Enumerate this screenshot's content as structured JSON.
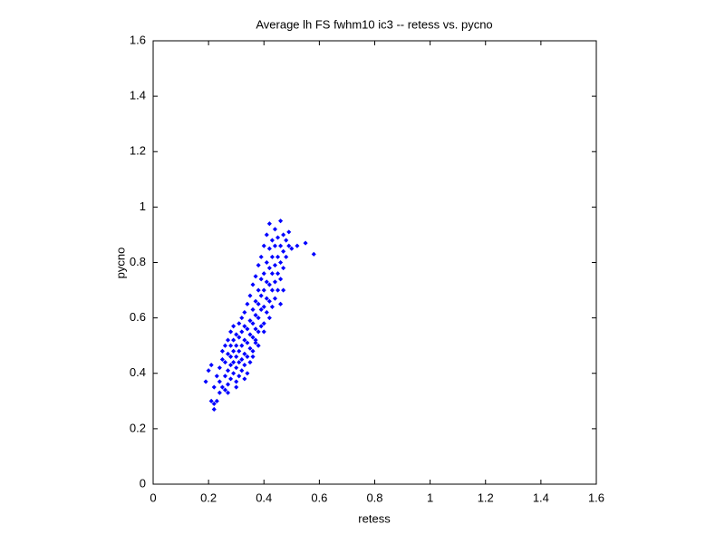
{
  "chart_data": {
    "type": "scatter",
    "title": "Average lh FS fwhm10 ic3 -- retess vs. pycno",
    "x_label": "retess",
    "y_label": "pycno",
    "xlim": [
      0,
      1.6
    ],
    "ylim": [
      0,
      1.6
    ],
    "xticks": [
      0,
      0.2,
      0.4,
      0.6,
      0.8,
      1,
      1.2,
      1.4,
      1.6
    ],
    "yticks": [
      0,
      0.2,
      0.4,
      0.6,
      0.8,
      1,
      1.2,
      1.4,
      1.6
    ],
    "grid": false,
    "series": [
      {
        "color": "#0000ff",
        "x": [
          0.19,
          0.2,
          0.21,
          0.22,
          0.22,
          0.23,
          0.22,
          0.23,
          0.21,
          0.24,
          0.24,
          0.24,
          0.25,
          0.25,
          0.25,
          0.26,
          0.26,
          0.26,
          0.26,
          0.27,
          0.27,
          0.27,
          0.27,
          0.28,
          0.28,
          0.28,
          0.28,
          0.28,
          0.29,
          0.29,
          0.29,
          0.29,
          0.29,
          0.3,
          0.3,
          0.3,
          0.3,
          0.3,
          0.31,
          0.31,
          0.31,
          0.31,
          0.31,
          0.32,
          0.32,
          0.32,
          0.32,
          0.32,
          0.33,
          0.33,
          0.33,
          0.33,
          0.33,
          0.34,
          0.34,
          0.34,
          0.34,
          0.34,
          0.35,
          0.35,
          0.35,
          0.35,
          0.35,
          0.36,
          0.36,
          0.36,
          0.36,
          0.36,
          0.37,
          0.37,
          0.37,
          0.37,
          0.37,
          0.38,
          0.38,
          0.38,
          0.38,
          0.38,
          0.39,
          0.39,
          0.39,
          0.39,
          0.39,
          0.4,
          0.4,
          0.4,
          0.4,
          0.4,
          0.41,
          0.41,
          0.41,
          0.41,
          0.41,
          0.42,
          0.42,
          0.42,
          0.42,
          0.42,
          0.42,
          0.43,
          0.43,
          0.43,
          0.43,
          0.43,
          0.44,
          0.44,
          0.44,
          0.44,
          0.44,
          0.45,
          0.45,
          0.45,
          0.45,
          0.46,
          0.46,
          0.46,
          0.46,
          0.47,
          0.47,
          0.47,
          0.48,
          0.48,
          0.49,
          0.49,
          0.5,
          0.52,
          0.55,
          0.58,
          0.37,
          0.36,
          0.38,
          0.4,
          0.33,
          0.3,
          0.27,
          0.46,
          0.47
        ],
        "values": [
          0.37,
          0.41,
          0.3,
          0.27,
          0.29,
          0.3,
          0.35,
          0.39,
          0.43,
          0.33,
          0.37,
          0.42,
          0.45,
          0.48,
          0.35,
          0.34,
          0.39,
          0.44,
          0.5,
          0.36,
          0.41,
          0.47,
          0.52,
          0.38,
          0.43,
          0.46,
          0.5,
          0.55,
          0.4,
          0.44,
          0.48,
          0.52,
          0.57,
          0.37,
          0.42,
          0.46,
          0.5,
          0.54,
          0.39,
          0.44,
          0.48,
          0.53,
          0.58,
          0.41,
          0.45,
          0.5,
          0.55,
          0.6,
          0.43,
          0.47,
          0.52,
          0.57,
          0.62,
          0.4,
          0.46,
          0.51,
          0.56,
          0.65,
          0.44,
          0.49,
          0.54,
          0.59,
          0.68,
          0.48,
          0.53,
          0.58,
          0.63,
          0.72,
          0.51,
          0.56,
          0.61,
          0.66,
          0.75,
          0.55,
          0.6,
          0.65,
          0.7,
          0.79,
          0.57,
          0.63,
          0.68,
          0.74,
          0.82,
          0.58,
          0.64,
          0.7,
          0.76,
          0.86,
          0.62,
          0.67,
          0.73,
          0.8,
          0.9,
          0.6,
          0.66,
          0.72,
          0.78,
          0.85,
          0.94,
          0.64,
          0.7,
          0.76,
          0.82,
          0.88,
          0.67,
          0.73,
          0.79,
          0.86,
          0.92,
          0.7,
          0.76,
          0.82,
          0.89,
          0.74,
          0.8,
          0.86,
          0.95,
          0.78,
          0.84,
          0.9,
          0.82,
          0.88,
          0.86,
          0.91,
          0.85,
          0.86,
          0.87,
          0.83,
          0.52,
          0.46,
          0.5,
          0.55,
          0.38,
          0.35,
          0.33,
          0.65,
          0.7
        ]
      }
    ]
  }
}
